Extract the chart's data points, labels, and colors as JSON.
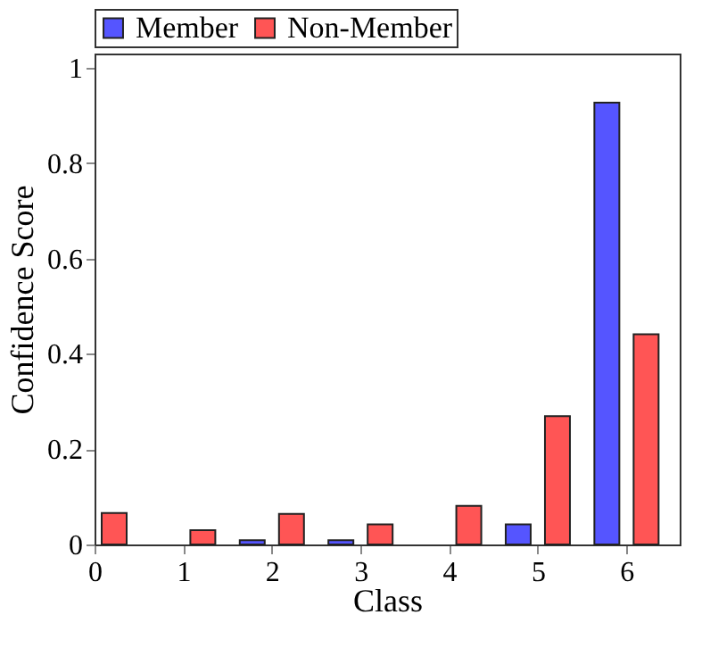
{
  "chart_data": {
    "type": "bar",
    "xlabel": "Class",
    "ylabel": "Confidence Score",
    "x": [
      0,
      1,
      2,
      3,
      4,
      5,
      6
    ],
    "series": [
      {
        "name": "Member",
        "color": "#5555ff",
        "values": [
          null,
          null,
          0.009,
          0.009,
          null,
          0.042,
          0.927
        ]
      },
      {
        "name": "Non-Member",
        "color": "#ff5555",
        "values": [
          0.066,
          0.03,
          0.064,
          0.042,
          0.081,
          0.269,
          0.441
        ]
      }
    ],
    "xlim": [
      0,
      6.6
    ],
    "xticks": [
      0,
      1,
      2,
      3,
      4,
      5,
      6
    ],
    "ylim": [
      0,
      1.03
    ],
    "yticks": [
      0,
      0.2,
      0.4,
      0.6,
      0.8,
      1
    ],
    "grid": false,
    "legend": "top"
  }
}
